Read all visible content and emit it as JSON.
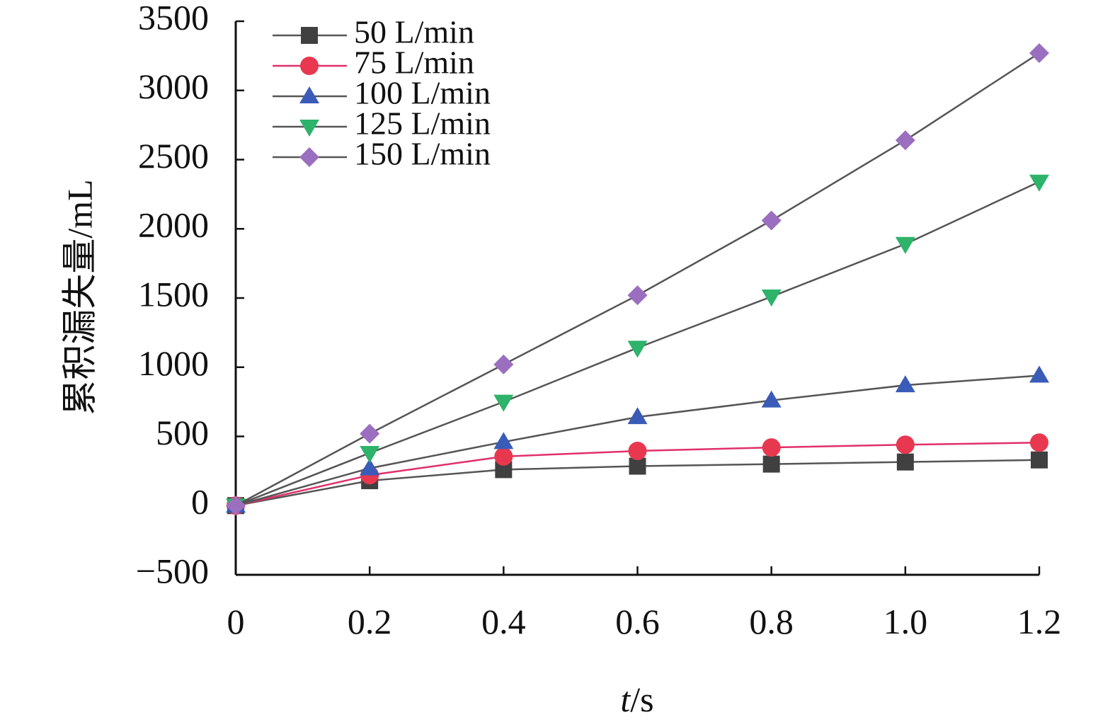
{
  "chart_data": {
    "type": "line",
    "xlabel_italic": "t",
    "xlabel_unit": "/s",
    "ylabel": "累积漏失量/mL",
    "x": [
      0,
      0.2,
      0.4,
      0.6,
      0.8,
      1.0,
      1.2
    ],
    "x_tick_labels": [
      "0",
      "0.2",
      "0.4",
      "0.6",
      "0.8",
      "1.0",
      "1.2"
    ],
    "xlim": [
      0,
      1.2
    ],
    "ylim": [
      -500,
      3500
    ],
    "y_ticks": [
      -500,
      0,
      500,
      1000,
      1500,
      2000,
      2500,
      3000,
      3500
    ],
    "y_tick_labels": [
      "−500",
      "0",
      "500",
      "1000",
      "1500",
      "2000",
      "2500",
      "3000",
      "3500"
    ],
    "grid": false,
    "legend_position": "top-left",
    "series": [
      {
        "name": "50 L/min",
        "marker": "square",
        "line_color": "#555555",
        "marker_color": "#404040",
        "values": [
          0,
          180,
          260,
          285,
          300,
          315,
          330
        ]
      },
      {
        "name": "75 L/min",
        "marker": "circle",
        "line_color": "#e0306a",
        "marker_color": "#e8384f",
        "values": [
          0,
          220,
          355,
          395,
          420,
          440,
          455
        ]
      },
      {
        "name": "100 L/min",
        "marker": "triangle-up",
        "line_color": "#555555",
        "marker_color": "#3a5cb8",
        "values": [
          0,
          270,
          460,
          640,
          760,
          870,
          940
        ]
      },
      {
        "name": "125 L/min",
        "marker": "triangle-down",
        "line_color": "#555555",
        "marker_color": "#2db36a",
        "values": [
          0,
          380,
          750,
          1140,
          1510,
          1890,
          2340
        ]
      },
      {
        "name": "150 L/min",
        "marker": "diamond",
        "line_color": "#555555",
        "marker_color": "#9b6fc0",
        "values": [
          0,
          520,
          1020,
          1520,
          2060,
          2640,
          3270
        ]
      }
    ]
  }
}
